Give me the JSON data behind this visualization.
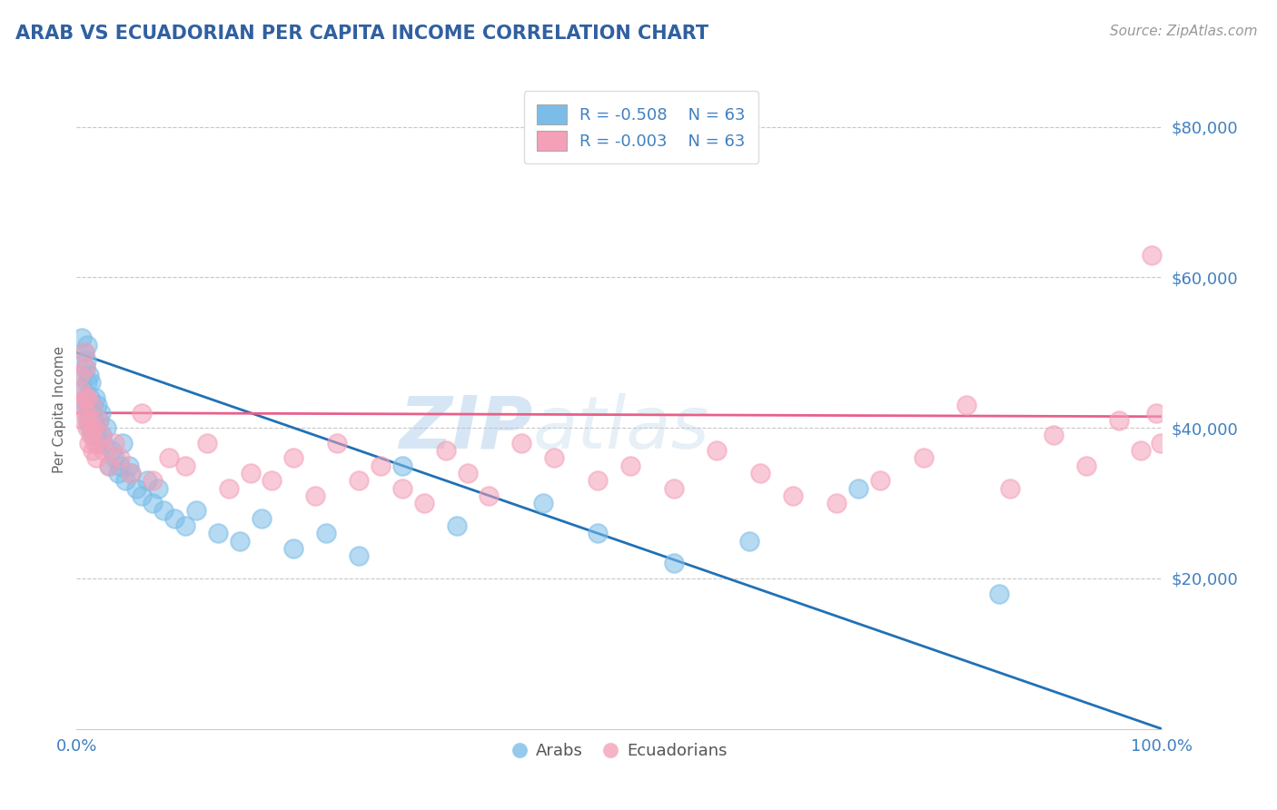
{
  "title": "ARAB VS ECUADORIAN PER CAPITA INCOME CORRELATION CHART",
  "source_text": "Source: ZipAtlas.com",
  "ylabel": "Per Capita Income",
  "xlim": [
    0,
    1.0
  ],
  "ylim": [
    0,
    85000
  ],
  "R_arab": -0.508,
  "N_arab": 63,
  "R_ecu": -0.003,
  "N_ecu": 63,
  "arab_color": "#7bbde8",
  "ecu_color": "#f4a0b8",
  "arab_line_color": "#2171b5",
  "ecu_line_color": "#e8608a",
  "legend_label_arab": "Arabs",
  "legend_label_ecu": "Ecuadorians",
  "watermark_zip": "ZIP",
  "watermark_atlas": "atlas",
  "background_color": "#ffffff",
  "grid_color": "#c8c8c8",
  "title_color": "#3060a0",
  "axis_label_color": "#666666",
  "tick_color": "#4080c0",
  "arab_x": [
    0.005,
    0.005,
    0.006,
    0.007,
    0.008,
    0.008,
    0.009,
    0.009,
    0.01,
    0.01,
    0.01,
    0.01,
    0.011,
    0.011,
    0.012,
    0.012,
    0.013,
    0.013,
    0.014,
    0.015,
    0.015,
    0.016,
    0.017,
    0.018,
    0.019,
    0.02,
    0.021,
    0.022,
    0.023,
    0.025,
    0.027,
    0.03,
    0.032,
    0.035,
    0.038,
    0.04,
    0.042,
    0.045,
    0.048,
    0.05,
    0.055,
    0.06,
    0.065,
    0.07,
    0.075,
    0.08,
    0.09,
    0.1,
    0.11,
    0.13,
    0.15,
    0.17,
    0.2,
    0.23,
    0.26,
    0.3,
    0.35,
    0.43,
    0.48,
    0.55,
    0.62,
    0.72,
    0.85
  ],
  "arab_y": [
    47000,
    52000,
    45000,
    50000,
    43000,
    48000,
    44000,
    49000,
    41000,
    43000,
    46000,
    51000,
    42000,
    47000,
    40000,
    44000,
    43000,
    46000,
    42000,
    39000,
    43000,
    41000,
    44000,
    40000,
    43000,
    38000,
    41000,
    42000,
    39000,
    38000,
    40000,
    35000,
    37000,
    36000,
    34000,
    35000,
    38000,
    33000,
    35000,
    34000,
    32000,
    31000,
    33000,
    30000,
    32000,
    29000,
    28000,
    27000,
    29000,
    26000,
    25000,
    28000,
    24000,
    26000,
    23000,
    35000,
    27000,
    30000,
    26000,
    22000,
    25000,
    32000,
    18000
  ],
  "ecu_x": [
    0.003,
    0.004,
    0.005,
    0.006,
    0.007,
    0.008,
    0.008,
    0.009,
    0.01,
    0.01,
    0.011,
    0.012,
    0.013,
    0.014,
    0.015,
    0.016,
    0.017,
    0.018,
    0.02,
    0.022,
    0.025,
    0.03,
    0.035,
    0.04,
    0.05,
    0.06,
    0.07,
    0.085,
    0.1,
    0.12,
    0.14,
    0.16,
    0.18,
    0.2,
    0.22,
    0.24,
    0.26,
    0.28,
    0.3,
    0.32,
    0.34,
    0.36,
    0.38,
    0.41,
    0.44,
    0.48,
    0.51,
    0.55,
    0.59,
    0.63,
    0.66,
    0.7,
    0.74,
    0.78,
    0.82,
    0.86,
    0.9,
    0.93,
    0.96,
    0.98,
    0.99,
    0.995,
    0.999
  ],
  "ecu_y": [
    47000,
    45000,
    43000,
    41000,
    50000,
    44000,
    48000,
    42000,
    40000,
    44000,
    38000,
    41000,
    39000,
    43000,
    37000,
    40000,
    38000,
    36000,
    41000,
    39000,
    37000,
    35000,
    38000,
    36000,
    34000,
    42000,
    33000,
    36000,
    35000,
    38000,
    32000,
    34000,
    33000,
    36000,
    31000,
    38000,
    33000,
    35000,
    32000,
    30000,
    37000,
    34000,
    31000,
    38000,
    36000,
    33000,
    35000,
    32000,
    37000,
    34000,
    31000,
    30000,
    33000,
    36000,
    43000,
    32000,
    39000,
    35000,
    41000,
    37000,
    63000,
    42000,
    38000
  ],
  "arab_line_x0": 0.0,
  "arab_line_y0": 50000,
  "arab_line_x1": 1.0,
  "arab_line_y1": 0,
  "ecu_line_x0": 0.0,
  "ecu_line_y0": 42000,
  "ecu_line_x1": 1.0,
  "ecu_line_y1": 41500
}
